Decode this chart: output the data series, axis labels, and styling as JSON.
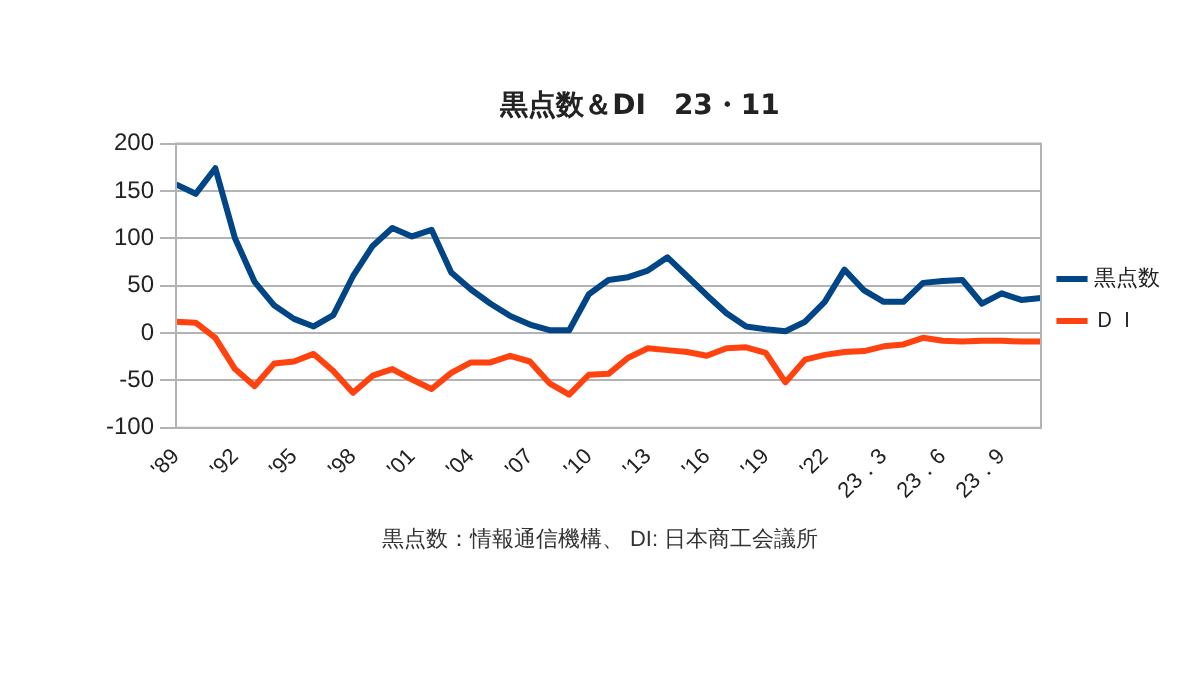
{
  "chart_data": {
    "type": "line",
    "title": "黒点数＆DI　23・11",
    "categories": [
      "'89",
      null,
      null,
      "'92",
      null,
      null,
      "'95",
      null,
      null,
      "'98",
      null,
      null,
      "'01",
      null,
      null,
      "'04",
      null,
      null,
      "'07",
      null,
      null,
      "'10",
      null,
      null,
      "'13",
      null,
      null,
      "'16",
      null,
      null,
      "'19",
      null,
      null,
      "'22",
      null,
      null,
      "23．3",
      null,
      null,
      "23．6",
      null,
      null,
      "23．9",
      null,
      null
    ],
    "series": [
      {
        "name": "黒点数",
        "color": "#004586",
        "values": [
          157,
          147,
          174,
          100,
          54,
          29,
          15,
          7,
          19,
          60,
          92,
          111,
          102,
          109,
          64,
          46,
          31,
          18,
          9,
          3,
          3,
          41,
          56,
          59,
          66,
          80,
          60,
          40,
          21,
          7,
          4,
          2,
          12,
          33,
          67,
          45,
          33,
          33,
          53,
          55,
          56,
          31,
          42,
          35,
          37
        ]
      },
      {
        "name": "ＤＩ",
        "color": "#ff420e",
        "values": [
          12,
          11,
          -5,
          -38,
          -56,
          -32,
          -30,
          -22,
          -40,
          -63,
          -45,
          -38,
          -49,
          -59,
          -42,
          -31,
          -31,
          -24,
          -30,
          -53,
          -65,
          -44,
          -43,
          -26,
          -16,
          -18,
          -20,
          -24,
          -16,
          -15,
          -21,
          -52,
          -28,
          -23,
          -20,
          -19,
          -14,
          -12,
          -5,
          -8,
          -9,
          -8,
          -8,
          -9,
          -9
        ]
      }
    ],
    "ylim": [
      -100,
      200
    ],
    "yticks": [
      -100,
      -50,
      0,
      50,
      100,
      150,
      200
    ],
    "grid": "y",
    "legend": "right",
    "marker": "none",
    "line_style": "solid",
    "annotations": [
      "黒点数：情報通信機構、 DI: 日本商工会議所"
    ]
  }
}
